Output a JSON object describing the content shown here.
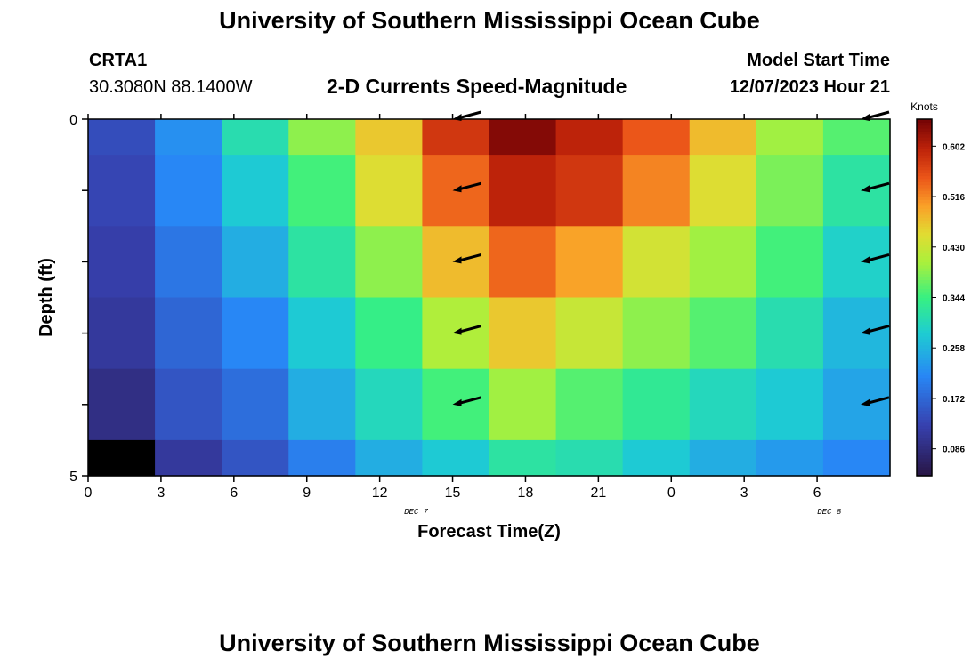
{
  "header": {
    "title": "University of Southern Mississippi Ocean Cube",
    "station_id": "CRTA1",
    "station_coords": "30.3080N  88.1400W",
    "chart_subtitle": "2-D Currents Speed-Magnitude",
    "model_start_label": "Model Start Time",
    "model_start_value": "12/07/2023 Hour 21"
  },
  "footer": {
    "title": "University of Southern Mississippi Ocean Cube"
  },
  "chart_data": {
    "type": "heatmap",
    "title": "2-D Currents Speed-Magnitude",
    "xlabel": "Forecast Time(Z)",
    "ylabel": "Depth (ft)",
    "x_tick_labels": [
      "0",
      "3",
      "6",
      "9",
      "12",
      "15",
      "18",
      "21",
      "0",
      "3",
      "6"
    ],
    "x_range_hours": [
      0,
      33
    ],
    "date_labels": [
      {
        "text": "DEC 7",
        "hour": 13.5
      },
      {
        "text": "DEC 8",
        "hour": 30.5
      }
    ],
    "y_tick_labels": [
      "0",
      "5"
    ],
    "ylim": [
      0,
      5
    ],
    "column_hours": [
      0,
      2.75,
      5.5,
      8.25,
      11,
      13.75,
      16.5,
      19.25,
      22,
      24.75,
      27.5,
      30.25,
      33
    ],
    "depth_bins_ft": [
      0,
      0.5,
      1.5,
      2.5,
      3.5,
      4.5,
      5
    ],
    "speed_knots": [
      [
        0.14,
        0.22,
        0.31,
        0.39,
        0.47,
        0.58,
        0.64,
        0.6,
        0.55,
        0.48,
        0.4,
        0.36
      ],
      [
        0.13,
        0.21,
        0.28,
        0.35,
        0.45,
        0.54,
        0.6,
        0.58,
        0.52,
        0.45,
        0.38,
        0.32
      ],
      [
        0.12,
        0.19,
        0.25,
        0.32,
        0.39,
        0.48,
        0.54,
        0.5,
        0.44,
        0.4,
        0.35,
        0.29
      ],
      [
        0.11,
        0.17,
        0.21,
        0.28,
        0.34,
        0.41,
        0.47,
        0.43,
        0.39,
        0.36,
        0.31,
        0.26
      ],
      [
        0.09,
        0.15,
        0.18,
        0.25,
        0.3,
        0.35,
        0.4,
        0.36,
        0.33,
        0.3,
        0.28,
        0.24
      ],
      [
        0.03,
        0.11,
        0.15,
        0.2,
        0.25,
        0.28,
        0.32,
        0.31,
        0.28,
        0.25,
        0.23,
        0.21
      ]
    ],
    "vector_hours": [
      15,
      33
    ],
    "vector_depths_ft": [
      0,
      1,
      2,
      3,
      4
    ],
    "colorbar": {
      "title": "Knots",
      "ticks": [
        0.086,
        0.172,
        0.258,
        0.344,
        0.43,
        0.516,
        0.602
      ],
      "tick_labels": [
        "0.086",
        "0.172",
        "0.258",
        "0.344",
        "0.430",
        "0.516",
        "0.602"
      ],
      "range": [
        0.04,
        0.648
      ]
    }
  }
}
